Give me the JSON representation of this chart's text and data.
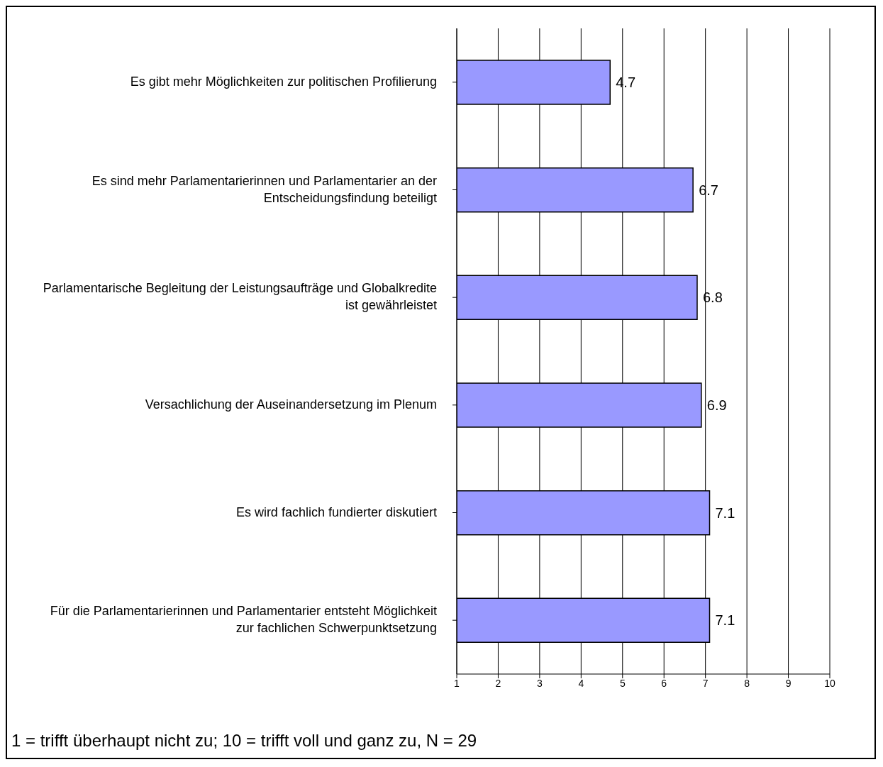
{
  "chart_data": {
    "type": "bar",
    "orientation": "horizontal",
    "categories": [
      "Es gibt mehr Möglichkeiten zur politischen Profilierung",
      "Es sind mehr Parlamentarierinnen und Parlamentarier an der Entscheidungsfindung beteiligt",
      "Parlamentarische Begleitung der Leistungsaufträge und Globalkredite ist gewährleistet",
      "Versachlichung der Auseinandersetzung im Plenum",
      "Es wird fachlich fundierter diskutiert",
      "Für die Parlamentarierinnen und Parlamentarier entsteht Möglichkeit zur fachlichen Schwerpunktsetzung"
    ],
    "values": [
      4.7,
      6.7,
      6.8,
      6.9,
      7.1,
      7.1
    ],
    "color": "#9999ff",
    "xlim": [
      1,
      10
    ],
    "xticks": [
      1,
      2,
      3,
      4,
      5,
      6,
      7,
      8,
      9,
      10
    ],
    "grid": "x",
    "data_labels": true,
    "legend": false,
    "annotations": [
      "1 = trifft überhaupt nicht zu; 10 = trifft voll und ganz zu, N = 29"
    ]
  }
}
